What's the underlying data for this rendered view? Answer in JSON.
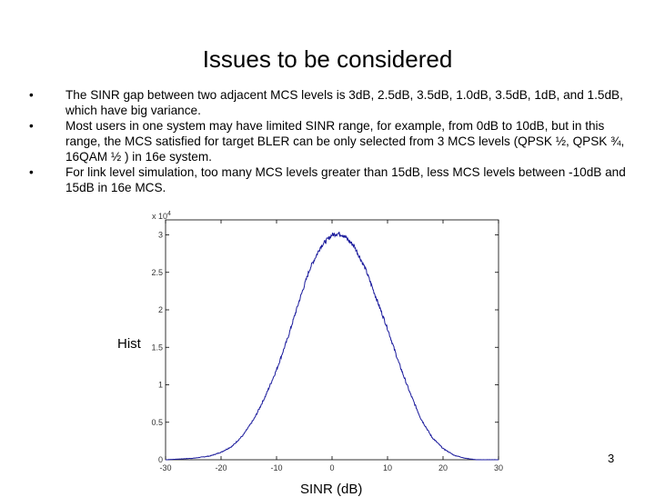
{
  "slide": {
    "title": "Issues to be considered",
    "bullets": [
      "The SINR gap between two adjacent MCS levels is 3dB, 2.5dB, 3.5dB, 1.0dB, 3.5dB, 1dB, and 1.5dB, which have big variance.",
      "Most users in one system may have limited SINR range, for example, from 0dB to 10dB, but in this range, the MCS satisfied for target BLER can be only selected from 3 MCS levels (QPSK ½, QPSK ¾, 16QAM ½ ) in 16e system.",
      "For link level simulation, too many MCS levels greater than 15dB, less MCS levels between -10dB and 15dB in 16e MCS."
    ],
    "bullet_glyph": "•",
    "hist_label": "Hist",
    "page_number": "3"
  },
  "chart_data": {
    "type": "line",
    "xlabel": "SINR (dB)",
    "ylabel": "",
    "y_multiplier_label": "x 10",
    "y_multiplier_exp": "4",
    "xlim": [
      -30,
      30
    ],
    "ylim": [
      0,
      3.2
    ],
    "xticks": [
      "-30",
      "-20",
      "-10",
      "0",
      "10",
      "20",
      "30"
    ],
    "yticks": [
      "0",
      "0.5",
      "1",
      "1.5",
      "2",
      "2.5",
      "3"
    ],
    "line_color": "#1a1a9c",
    "series": [
      {
        "x": [
          -30,
          -25,
          -22,
          -20,
          -18,
          -16,
          -14,
          -12,
          -10,
          -8,
          -6,
          -4,
          -2,
          0,
          1,
          2,
          4,
          6,
          8,
          10,
          12,
          14,
          16,
          18,
          20,
          22,
          24,
          26,
          28,
          30
        ],
        "values": [
          0.0,
          0.02,
          0.05,
          0.1,
          0.18,
          0.33,
          0.55,
          0.85,
          1.2,
          1.62,
          2.1,
          2.55,
          2.85,
          3.0,
          3.02,
          3.0,
          2.85,
          2.55,
          2.15,
          1.75,
          1.3,
          0.9,
          0.55,
          0.3,
          0.15,
          0.06,
          0.02,
          0.0,
          0.0,
          0.0
        ]
      }
    ]
  }
}
